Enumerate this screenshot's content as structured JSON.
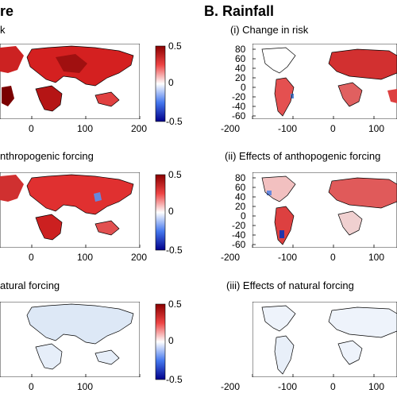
{
  "sections": {
    "temperature": {
      "title": "re"
    },
    "rainfall": {
      "title": "B. Rainfall"
    }
  },
  "left_column": {
    "row_titles": [
      "k",
      "nthropogenic forcing",
      "atural forcing"
    ],
    "x_ticks": [
      "0",
      "100",
      "200"
    ]
  },
  "right_column": {
    "row_titles": [
      "(i) Change in risk",
      "(ii) Effects of anthopogenic forcing",
      "(iii) Effects of natural forcing"
    ],
    "x_ticks": [
      "-200",
      "-100",
      "0",
      "100"
    ],
    "y_ticks": [
      "80",
      "60",
      "40",
      "20",
      "0",
      "-20",
      "-40",
      "-60"
    ]
  },
  "colorbar": {
    "max_label": "0.5",
    "mid_label": "0",
    "min_label": "-0.5",
    "colors": {
      "high": "#8b0000",
      "mid": "#ffffff",
      "low": "#00008b"
    }
  }
}
